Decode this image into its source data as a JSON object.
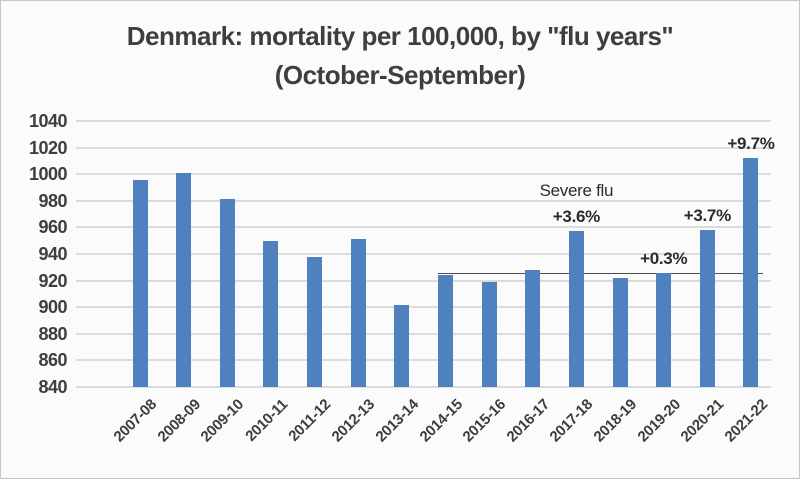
{
  "title": {
    "line1": "Denmark: mortality per 100,000, by \"flu years\"",
    "line2": "(October-September)"
  },
  "chart_data": {
    "type": "bar",
    "title": "Denmark: mortality per 100,000, by \"flu years\" (October-September)",
    "categories": [
      "2007-08",
      "2008-09",
      "2009-10",
      "2010-11",
      "2011-12",
      "2012-13",
      "2013-14",
      "2014-15",
      "2015-16",
      "2016-17",
      "2017-18",
      "2018-19",
      "2019-20",
      "2020-21",
      "2021-22"
    ],
    "values": [
      996,
      1001,
      981,
      950,
      938,
      951,
      902,
      924,
      919,
      928,
      957,
      922,
      926,
      958,
      1012
    ],
    "xlabel": "",
    "ylabel": "",
    "ylim": [
      840,
      1040
    ],
    "yticks": [
      840,
      860,
      880,
      900,
      920,
      940,
      960,
      980,
      1000,
      1020,
      1040
    ],
    "grid": true,
    "legend": false,
    "bar_color": "#4E81BD",
    "gridline_color": "#DCDCDC",
    "annotations": [
      {
        "text": "Severe flu",
        "category": "2017-18",
        "bold": false,
        "row": 1
      },
      {
        "text": "+3.6%",
        "category": "2017-18",
        "bold": true,
        "row": 0
      },
      {
        "text": "+0.3%",
        "category": "2019-20",
        "bold": true,
        "row": 0
      },
      {
        "text": "+3.7%",
        "category": "2020-21",
        "bold": true,
        "row": 0
      },
      {
        "text": "+9.7%",
        "category": "2021-22",
        "bold": true,
        "row": 0
      }
    ],
    "reference_line": {
      "value": 925,
      "start_category": "2014-15",
      "end_category": "2021-22",
      "color": "#4d4d4d"
    }
  }
}
